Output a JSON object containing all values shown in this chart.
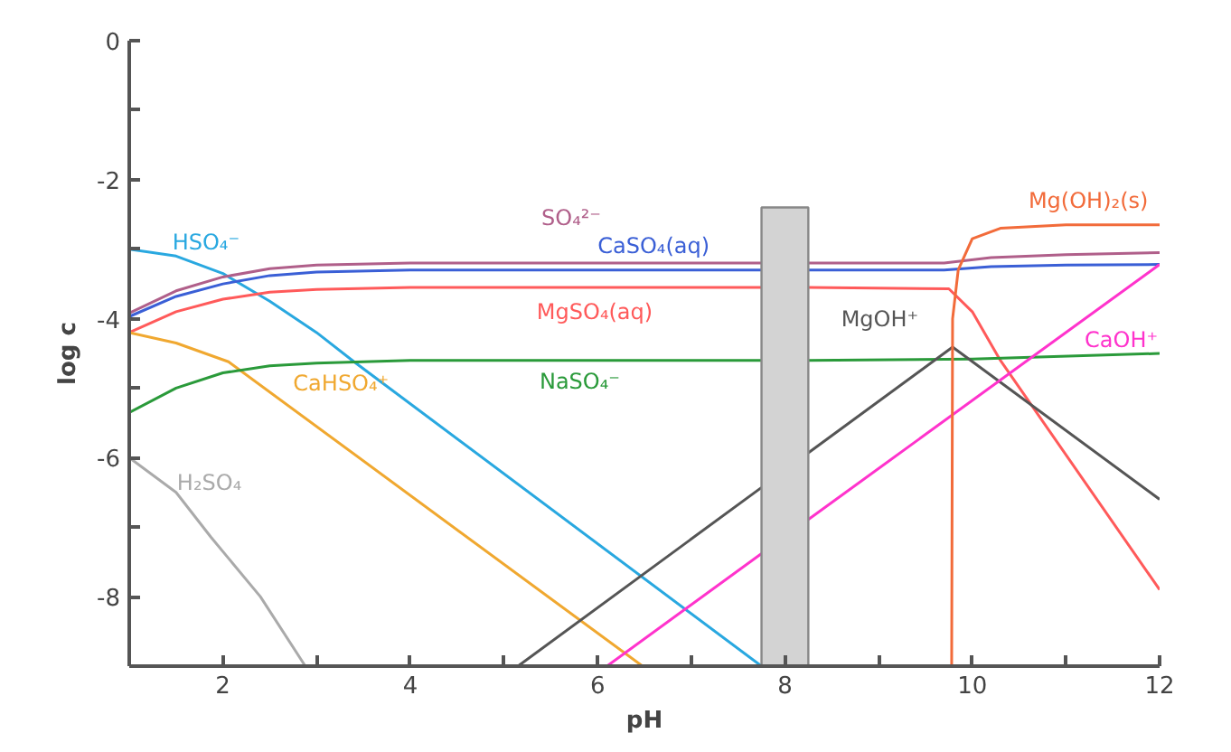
{
  "chart_data": {
    "type": "line",
    "xlabel": "pH",
    "ylabel": "log c",
    "xlim": [
      1,
      12
    ],
    "ylim": [
      -9,
      0
    ],
    "xticks": [
      {
        "value": 2,
        "label": "2"
      },
      {
        "value": 3,
        "label": null
      },
      {
        "value": 4,
        "label": "4"
      },
      {
        "value": 5,
        "label": null
      },
      {
        "value": 6,
        "label": "6"
      },
      {
        "value": 7,
        "label": null
      },
      {
        "value": 8,
        "label": "8"
      },
      {
        "value": 9,
        "label": null
      },
      {
        "value": 10,
        "label": "10"
      },
      {
        "value": 11,
        "label": null
      },
      {
        "value": 12,
        "label": "12"
      }
    ],
    "yticks": [
      {
        "value": 0,
        "label": "0"
      },
      {
        "value": -1,
        "label": null
      },
      {
        "value": -2,
        "label": "-2"
      },
      {
        "value": -3,
        "label": null
      },
      {
        "value": -4,
        "label": "-4"
      },
      {
        "value": -5,
        "label": null
      },
      {
        "value": -6,
        "label": "-6"
      },
      {
        "value": -7,
        "label": null
      },
      {
        "value": -8,
        "label": "-8"
      }
    ],
    "grid": false,
    "series": [
      {
        "name": "HSO₄⁻",
        "color": "#29a8e0",
        "x": [
          1,
          1.5,
          2,
          2.5,
          3,
          3.4,
          7.75
        ],
        "values": [
          -3.0,
          -3.1,
          -3.35,
          -3.75,
          -4.2,
          -4.62,
          -9
        ]
      },
      {
        "name": "SO₄²⁻",
        "color": "#b05f8a",
        "x": [
          1,
          1.5,
          2,
          2.5,
          3,
          4,
          7.75,
          8,
          8.25,
          9.7,
          10.2,
          11,
          12
        ],
        "values": [
          -3.92,
          -3.6,
          -3.4,
          -3.28,
          -3.23,
          -3.2,
          -3.2,
          null,
          -3.2,
          -3.2,
          -3.12,
          -3.08,
          -3.05
        ]
      },
      {
        "name": "CaSO₄(aq)",
        "color": "#3a5fd6",
        "x": [
          1,
          1.5,
          2,
          2.5,
          3,
          4,
          7.75,
          8,
          8.25,
          9.7,
          10.2,
          11,
          12
        ],
        "values": [
          -3.97,
          -3.68,
          -3.5,
          -3.38,
          -3.33,
          -3.3,
          -3.3,
          null,
          -3.3,
          -3.3,
          -3.25,
          -3.23,
          -3.22
        ]
      },
      {
        "name": "MgSO₄(aq)",
        "color": "#ff5a5a",
        "x": [
          1,
          1.5,
          2,
          2.5,
          3,
          4,
          7.75,
          8,
          8.25,
          9.75,
          10.0,
          10.3,
          12
        ],
        "values": [
          -4.2,
          -3.9,
          -3.72,
          -3.62,
          -3.58,
          -3.55,
          -3.55,
          null,
          -3.55,
          -3.57,
          -3.9,
          -4.6,
          -7.9
        ]
      },
      {
        "name": "CaHSO₄⁺",
        "color": "#f0a830",
        "x": [
          1,
          1.5,
          2.06,
          6.48
        ],
        "values": [
          -4.2,
          -4.35,
          -4.62,
          -9
        ]
      },
      {
        "name": "NaSO₄⁻",
        "color": "#2a9a3a",
        "x": [
          1,
          1.5,
          2,
          2.5,
          3,
          4,
          7.75,
          8,
          8.25,
          10,
          12
        ],
        "values": [
          -5.35,
          -5.0,
          -4.78,
          -4.68,
          -4.64,
          -4.6,
          -4.6,
          null,
          -4.6,
          -4.58,
          -4.5
        ]
      },
      {
        "name": "H₂SO₄",
        "color": "#aaaaaa",
        "x": [
          1,
          1.5,
          1.87,
          2.4,
          2.88
        ],
        "values": [
          -6.0,
          -6.5,
          -7.14,
          -8.0,
          -9
        ]
      },
      {
        "name": "MgOH⁺",
        "color": "#555555",
        "x": [
          5.15,
          7.75,
          8,
          8.25,
          9.79,
          12
        ],
        "values": [
          -9,
          -6.43,
          null,
          -5.93,
          -4.41,
          -6.6
        ]
      },
      {
        "name": "CaOH⁺",
        "color": "#ff33cc",
        "x": [
          6.1,
          7.75,
          8,
          8.25,
          12
        ],
        "values": [
          -9,
          -7.38,
          null,
          -6.89,
          -3.22
        ]
      },
      {
        "name": "Mg(OH)₂(s)",
        "color": "#f26b3a",
        "x": [
          9.78,
          9.79,
          9.85,
          10.0,
          10.3,
          11,
          12
        ],
        "values": [
          -9,
          -4.0,
          -3.3,
          -2.85,
          -2.7,
          -2.65,
          -2.65
        ]
      },
      {
        "type": "bar",
        "color": "#d3d3d3",
        "x": [
          8
        ],
        "base": [
          -9
        ],
        "values": [
          6.6
        ]
      }
    ]
  }
}
